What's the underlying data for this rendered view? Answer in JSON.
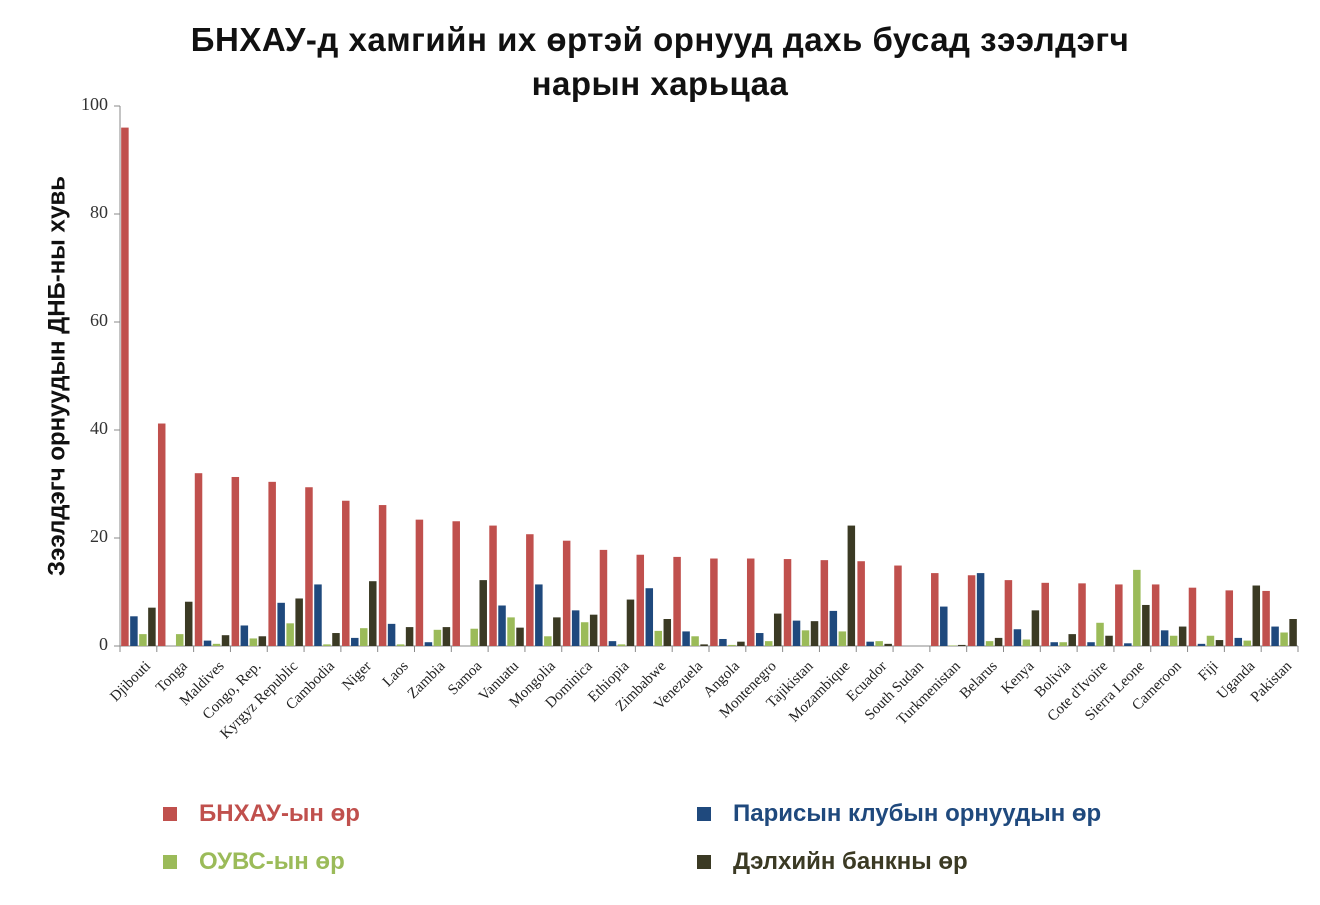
{
  "chart_data": {
    "type": "bar",
    "title_lines": [
      "БНХАУ-д хамгийн их өртэй орнууд дахь бусад зээлдэгч",
      "нарын харьцаа"
    ],
    "ylabel": "Зээлдэгч орнуудын ДНБ-ны хувь",
    "xlabel": "",
    "ylim": [
      0,
      100
    ],
    "yticks": [
      "0",
      "20",
      "40",
      "60",
      "80",
      "100"
    ],
    "categories": [
      "Djibouti",
      "Tonga",
      "Maldives",
      "Congo, Rep.",
      "Kyrgyz Republic",
      "Cambodia",
      "Niger",
      "Laos",
      "Zambia",
      "Samoa",
      "Vanuatu",
      "Mongolia",
      "Dominica",
      "Ethiopia",
      "Zimbabwe",
      "Venezuela",
      "Angola",
      "Montenegro",
      "Tajikistan",
      "Mozambique",
      "Ecuador",
      "South Sudan",
      "Turkmenistan",
      "Belarus",
      "Kenya",
      "Bolivia",
      "Cote d'Ivoire",
      "Sierra Leone",
      "Cameroon",
      "Fiji",
      "Uganda",
      "Pakistan"
    ],
    "series": [
      {
        "name": "БНХАУ-ын өр",
        "color": "#c0504d",
        "values": [
          96,
          41.2,
          32,
          31.3,
          30.4,
          29.4,
          26.9,
          26.1,
          23.4,
          23.1,
          22.3,
          20.7,
          19.5,
          17.8,
          16.9,
          16.5,
          16.2,
          16.2,
          16.1,
          15.9,
          15.7,
          14.9,
          13.5,
          13.1,
          12.2,
          11.7,
          11.6,
          11.4,
          11.4,
          10.8,
          10.3,
          10.2
        ]
      },
      {
        "name": "Парисын клубын орнуудын өр",
        "color": "#1f497d",
        "values": [
          5.5,
          0,
          1,
          3.8,
          8,
          11.4,
          1.5,
          4.1,
          0.7,
          0,
          7.5,
          11.4,
          6.6,
          0.9,
          10.7,
          2.7,
          1.3,
          2.4,
          4.7,
          6.5,
          0.8,
          0,
          7.3,
          13.5,
          3.1,
          0.7,
          0.7,
          0.5,
          2.9,
          0.4,
          1.5,
          3.6
        ]
      },
      {
        "name": "ОУВС-ын өр",
        "color": "#9bbb59",
        "values": [
          2.2,
          2.2,
          0.4,
          1.4,
          4.2,
          0.3,
          3.3,
          0.3,
          3,
          3.2,
          5.3,
          1.8,
          4.4,
          0.3,
          2.8,
          1.8,
          0.2,
          0.9,
          2.9,
          2.7,
          0.9,
          0,
          0.1,
          0.9,
          1.2,
          0.7,
          4.3,
          14.1,
          1.9,
          1.9,
          1,
          2.5
        ]
      },
      {
        "name": "Дэлхийн банкны өр",
        "color": "#3b3a24",
        "values": [
          7.1,
          8.2,
          2,
          1.8,
          8.8,
          2.4,
          12,
          3.5,
          3.5,
          12.2,
          3.4,
          5.3,
          5.8,
          8.6,
          5,
          0.3,
          0.8,
          6,
          4.6,
          22.3,
          0.4,
          0,
          0.2,
          1.5,
          6.6,
          2.2,
          1.9,
          7.6,
          3.6,
          1.1,
          11.2,
          5
        ]
      }
    ],
    "legend_position": "bottom"
  }
}
